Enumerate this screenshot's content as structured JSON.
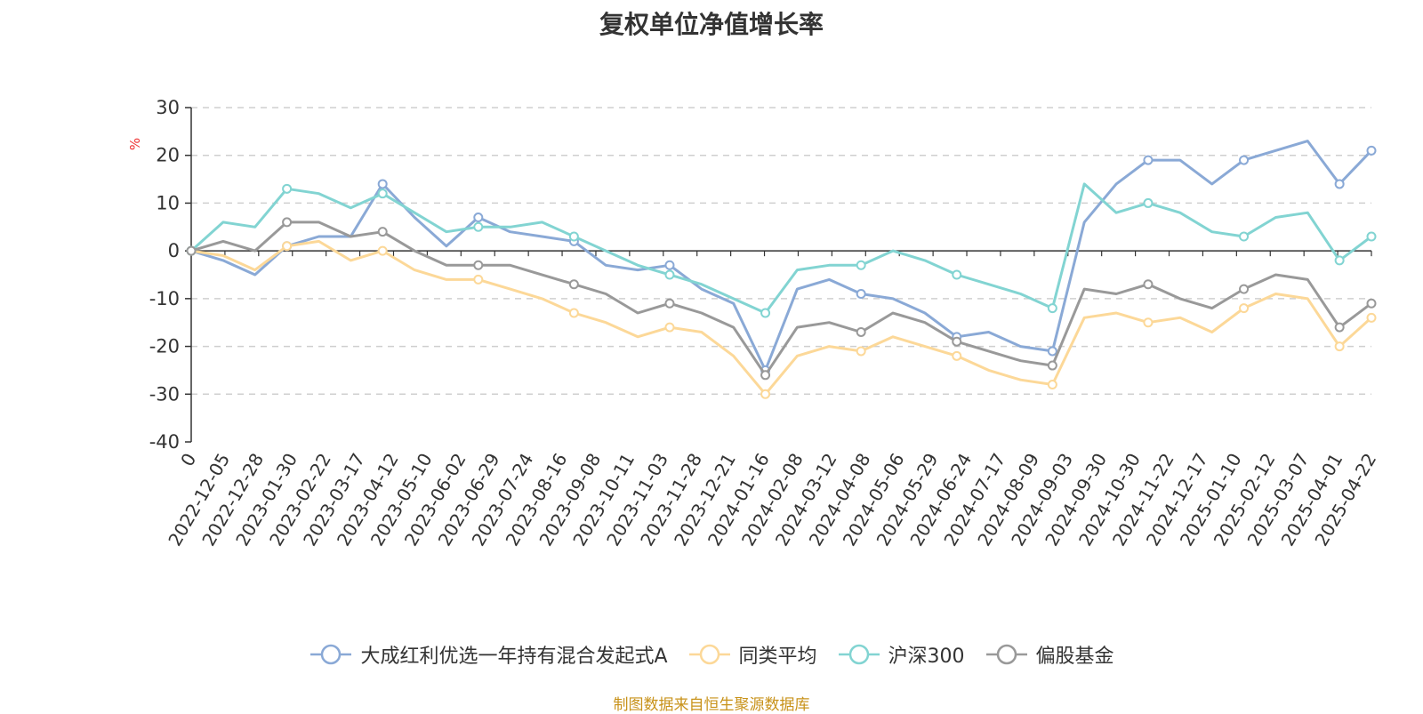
{
  "title": "复权单位净值增长率",
  "source": "制图数据来自恒生聚源数据库",
  "chart_data": {
    "type": "line",
    "title": "复权单位净值增长率",
    "ylabel": "%",
    "ylim": [
      -40,
      30
    ],
    "yticks": [
      -40,
      -30,
      -20,
      -10,
      0,
      10,
      20,
      30
    ],
    "grid": "dashed horizontal",
    "legend": "bottom",
    "x_tick_labels": [
      "0",
      "2022-12-05",
      "2022-12-28",
      "2023-01-30",
      "2023-02-22",
      "2023-03-17",
      "2023-04-12",
      "2023-05-10",
      "2023-06-02",
      "2023-06-29",
      "2023-07-24",
      "2023-08-16",
      "2023-09-08",
      "2023-10-11",
      "2023-11-03",
      "2023-11-28",
      "2023-12-21",
      "2024-01-16",
      "2024-02-08",
      "2024-03-12",
      "2024-04-08",
      "2024-05-06",
      "2024-05-29",
      "2024-06-24",
      "2024-07-17",
      "2024-08-09",
      "2024-09-03",
      "2024-09-30",
      "2024-10-30",
      "2024-11-22",
      "2024-12-17",
      "2025-01-10",
      "2025-02-12",
      "2025-03-07",
      "2025-04-01",
      "2025-04-22"
    ],
    "series": [
      {
        "name": "大成红利优选一年持有混合发起式A",
        "color": "#8aa9d6",
        "values": [
          0,
          -2,
          -5,
          1,
          3,
          3,
          14,
          7,
          1,
          7,
          4,
          3,
          2,
          -3,
          -4,
          -3,
          -8,
          -11,
          -25,
          -8,
          -6,
          -9,
          -10,
          -13,
          -18,
          -17,
          -20,
          -21,
          6,
          14,
          19,
          19,
          14,
          19,
          21,
          23,
          14,
          21
        ]
      },
      {
        "name": "同类平均",
        "color": "#fcd898",
        "values": [
          0,
          -1,
          -4,
          1,
          2,
          -2,
          0,
          -4,
          -6,
          -6,
          -8,
          -10,
          -13,
          -15,
          -18,
          -16,
          -17,
          -22,
          -30,
          -22,
          -20,
          -21,
          -18,
          -20,
          -22,
          -25,
          -27,
          -28,
          -14,
          -13,
          -15,
          -14,
          -17,
          -12,
          -9,
          -10,
          -20,
          -14
        ]
      },
      {
        "name": "沪深300",
        "color": "#82d4d2",
        "values": [
          0,
          6,
          5,
          13,
          12,
          9,
          12,
          8,
          4,
          5,
          5,
          6,
          3,
          0,
          -3,
          -5,
          -7,
          -10,
          -13,
          -4,
          -3,
          -3,
          0,
          -2,
          -5,
          -7,
          -9,
          -12,
          14,
          8,
          10,
          8,
          4,
          3,
          7,
          8,
          -2,
          3
        ]
      },
      {
        "name": "偏股基金",
        "color": "#999999",
        "values": [
          0,
          2,
          0,
          6,
          6,
          3,
          4,
          0,
          -3,
          -3,
          -3,
          -5,
          -7,
          -9,
          -13,
          -11,
          -13,
          -16,
          -26,
          -16,
          -15,
          -17,
          -13,
          -15,
          -19,
          -21,
          -23,
          -24,
          -8,
          -9,
          -7,
          -10,
          -12,
          -8,
          -5,
          -6,
          -16,
          -11
        ]
      }
    ]
  },
  "legend_icon": "circle-line-marker"
}
